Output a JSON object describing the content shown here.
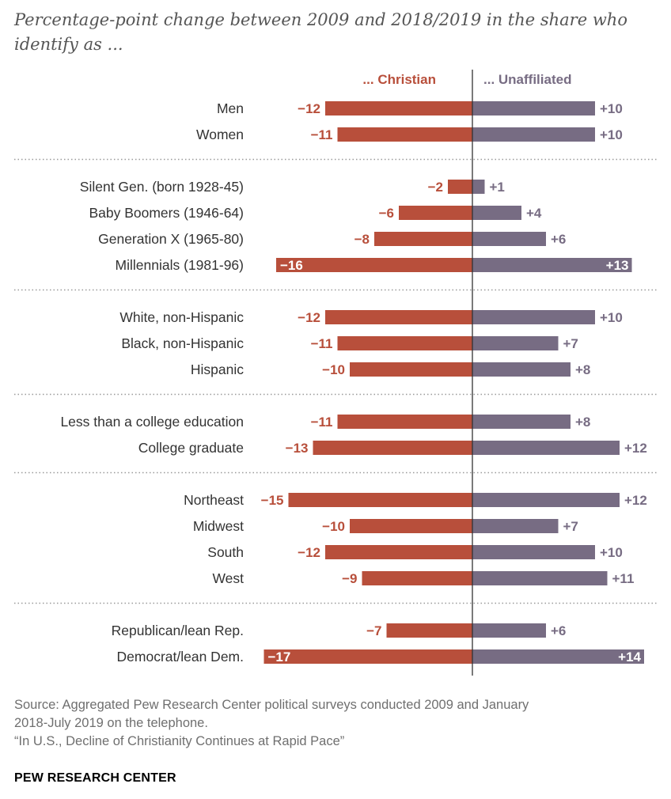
{
  "title": "Percentage-point change between 2009 and 2018/2019 in the share who identify as ...",
  "source_lines": [
    "Source: Aggregated Pew Research Center political surveys conducted 2009 and January",
    "2018-July 2019 on the telephone.",
    "“In U.S., Decline of Christianity Continues at Rapid Pace”"
  ],
  "brand": "PEW RESEARCH CENTER",
  "colors": {
    "christian": "#b84f3b",
    "unaffiliated": "#776c83",
    "label": "#333333",
    "separator": "#9a9a9a"
  },
  "chart_data": {
    "type": "bar",
    "orientation": "diverging-horizontal",
    "series": [
      {
        "name": "... Christian",
        "values": [
          -12,
          -11,
          -2,
          -6,
          -8,
          -16,
          -12,
          -11,
          -10,
          -11,
          -13,
          -15,
          -10,
          -12,
          -9,
          -7,
          -17
        ]
      },
      {
        "name": "... Unaffiliated",
        "values": [
          10,
          10,
          1,
          4,
          6,
          13,
          10,
          7,
          8,
          8,
          12,
          12,
          7,
          10,
          11,
          6,
          14
        ]
      }
    ],
    "categories": [
      "Men",
      "Women",
      "Silent Gen. (born 1928-45)",
      "Baby Boomers (1946-64)",
      "Generation X (1965-80)",
      "Millennials (1981-96)",
      "White, non-Hispanic",
      "Black, non-Hispanic",
      "Hispanic",
      "Less than a college education",
      "College graduate",
      "Northeast",
      "Midwest",
      "South",
      "West",
      "Republican/lean Rep.",
      "Democrat/lean Dem."
    ],
    "christian_labels": [
      "−12",
      "−11",
      "−2",
      "−6",
      "−8",
      "−16",
      "−12",
      "−11",
      "−10",
      "−11",
      "−13",
      "−15",
      "−10",
      "−12",
      "−9",
      "−7",
      "−17"
    ],
    "unaffiliated_labels": [
      "+10",
      "+10",
      "+1",
      "+4",
      "+6",
      "+13",
      "+10",
      "+7",
      "+8",
      "+8",
      "+12",
      "+12",
      "+7",
      "+10",
      "+11",
      "+6",
      "+14"
    ],
    "groups": [
      [
        "Men",
        "Women"
      ],
      [
        "Silent Gen. (born 1928-45)",
        "Baby Boomers (1946-64)",
        "Generation X (1965-80)",
        "Millennials (1981-96)"
      ],
      [
        "White, non-Hispanic",
        "Black, non-Hispanic",
        "Hispanic"
      ],
      [
        "Less than a college education",
        "College graduate"
      ],
      [
        "Northeast",
        "Midwest",
        "South",
        "West"
      ],
      [
        "Republican/lean Rep.",
        "Democrat/lean Dem."
      ]
    ],
    "labels_inside_bar": [
      "Millennials (1981-96)",
      "Democrat/lean Dem."
    ],
    "xlim": [
      -17,
      14
    ]
  }
}
